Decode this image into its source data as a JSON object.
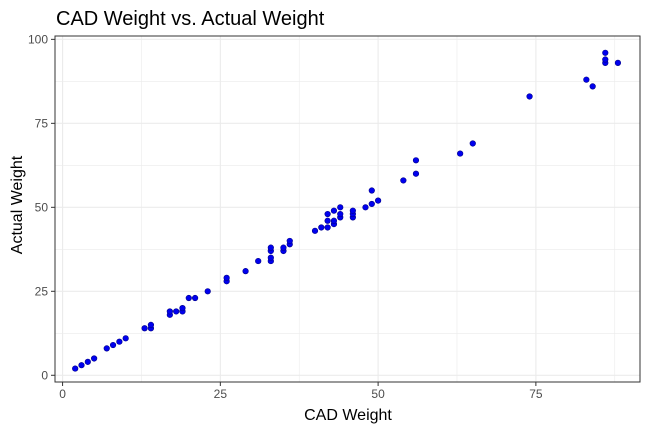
{
  "chart_data": {
    "type": "scatter",
    "title": "CAD Weight vs. Actual Weight",
    "xlabel": "CAD Weight",
    "ylabel": "Actual Weight",
    "xlim": [
      -1.2,
      91.5
    ],
    "ylim": [
      -2,
      101
    ],
    "x_ticks": [
      0,
      25,
      50,
      75
    ],
    "y_ticks": [
      0,
      25,
      50,
      75,
      100
    ],
    "grid": true,
    "point_color": "#0000ee",
    "grid_color": "#ebebeb",
    "points": [
      {
        "x": 2,
        "y": 2
      },
      {
        "x": 3,
        "y": 3
      },
      {
        "x": 4,
        "y": 4
      },
      {
        "x": 5,
        "y": 5
      },
      {
        "x": 7,
        "y": 8
      },
      {
        "x": 8,
        "y": 9
      },
      {
        "x": 9,
        "y": 10
      },
      {
        "x": 10,
        "y": 11
      },
      {
        "x": 13,
        "y": 14
      },
      {
        "x": 14,
        "y": 14
      },
      {
        "x": 14,
        "y": 15
      },
      {
        "x": 17,
        "y": 18
      },
      {
        "x": 17,
        "y": 19
      },
      {
        "x": 18,
        "y": 19
      },
      {
        "x": 19,
        "y": 19
      },
      {
        "x": 19,
        "y": 20
      },
      {
        "x": 20,
        "y": 23
      },
      {
        "x": 21,
        "y": 23
      },
      {
        "x": 23,
        "y": 25
      },
      {
        "x": 26,
        "y": 28
      },
      {
        "x": 26,
        "y": 29
      },
      {
        "x": 29,
        "y": 31
      },
      {
        "x": 31,
        "y": 34
      },
      {
        "x": 33,
        "y": 34
      },
      {
        "x": 33,
        "y": 35
      },
      {
        "x": 33,
        "y": 37
      },
      {
        "x": 33,
        "y": 38
      },
      {
        "x": 35,
        "y": 37
      },
      {
        "x": 35,
        "y": 38
      },
      {
        "x": 36,
        "y": 39
      },
      {
        "x": 36,
        "y": 40
      },
      {
        "x": 40,
        "y": 43
      },
      {
        "x": 41,
        "y": 44
      },
      {
        "x": 42,
        "y": 44
      },
      {
        "x": 42,
        "y": 46
      },
      {
        "x": 42,
        "y": 48
      },
      {
        "x": 43,
        "y": 45
      },
      {
        "x": 43,
        "y": 46
      },
      {
        "x": 43,
        "y": 49
      },
      {
        "x": 44,
        "y": 47
      },
      {
        "x": 44,
        "y": 48
      },
      {
        "x": 44,
        "y": 50
      },
      {
        "x": 46,
        "y": 47
      },
      {
        "x": 46,
        "y": 48
      },
      {
        "x": 46,
        "y": 49
      },
      {
        "x": 48,
        "y": 50
      },
      {
        "x": 49,
        "y": 51
      },
      {
        "x": 49,
        "y": 55
      },
      {
        "x": 50,
        "y": 52
      },
      {
        "x": 54,
        "y": 58
      },
      {
        "x": 56,
        "y": 60
      },
      {
        "x": 56,
        "y": 64
      },
      {
        "x": 63,
        "y": 66
      },
      {
        "x": 65,
        "y": 69
      },
      {
        "x": 74,
        "y": 83
      },
      {
        "x": 83,
        "y": 88
      },
      {
        "x": 84,
        "y": 86
      },
      {
        "x": 86,
        "y": 93
      },
      {
        "x": 86,
        "y": 94
      },
      {
        "x": 86,
        "y": 96
      },
      {
        "x": 88,
        "y": 93
      }
    ]
  }
}
